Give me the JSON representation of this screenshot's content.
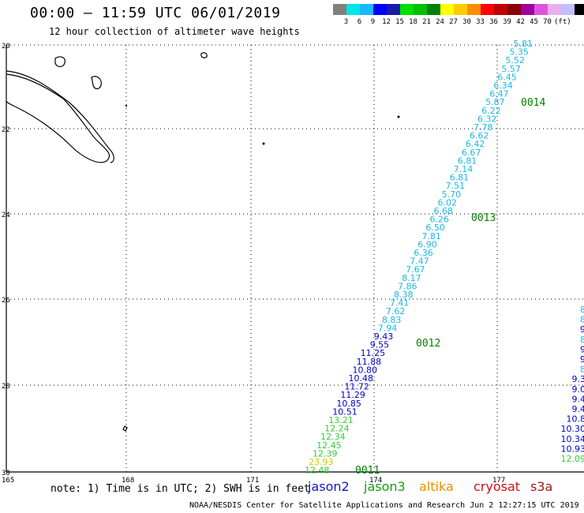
{
  "title": "00:00 – 11:59 UTC 06/01/2019",
  "subtitle": "12 hour collection of altimeter wave heights",
  "legend": {
    "colors": [
      "#808080",
      "#00e5e5",
      "#1ab8ff",
      "#0000ff",
      "#1a1aa8",
      "#00e000",
      "#00c000",
      "#008000",
      "#ffff00",
      "#ffcc00",
      "#ff8c00",
      "#ff0000",
      "#c00000",
      "#880000",
      "#a000a0",
      "#dd55dd",
      "#e8b0f0",
      "#c0c0ff",
      "#000000"
    ],
    "labels": [
      "3",
      "6",
      "9",
      "12",
      "15",
      "18",
      "21",
      "24",
      "27",
      "30",
      "33",
      "36",
      "39",
      "42",
      "45",
      "70",
      "(ft)"
    ]
  },
  "axes": {
    "lat_labels": [
      "20",
      "22",
      "24",
      "26",
      "28",
      "30"
    ],
    "lon_labels": [
      "165",
      "168",
      "171",
      "174",
      "177"
    ]
  },
  "tracks": [
    {
      "values": [
        "5.81",
        "5.35",
        "5.52",
        "5.57",
        "6.45",
        "6.34",
        "6.47",
        "5.87",
        "6.22",
        "6.32",
        "7.78",
        "6.62",
        "6.42",
        "6.67",
        "6.81",
        "7.14",
        "6.81",
        "7.51",
        "5.70",
        "6.02",
        "6.68",
        "6.26",
        "6.50",
        "7.81",
        "6.90",
        "6.36",
        "7.47",
        "7.67",
        "8.17",
        "7.86",
        "8.38",
        "7.41",
        "7.62",
        "8.83",
        "7.94",
        "9.43",
        "9.55",
        "11.25",
        "11.88",
        "10.80",
        "10.48",
        "11.72",
        "11.29",
        "10.85",
        "10.51",
        "13.21",
        "12.24",
        "12.34",
        "12.45",
        "12.39",
        "23.93",
        "12.48"
      ]
    },
    {
      "values": [
        "8",
        "8",
        "9",
        "8",
        "9",
        "9",
        "8",
        "9.3",
        "9.0",
        "9.4",
        "9.4",
        "10.8",
        "10.30",
        "10.34",
        "10.93",
        "12.09"
      ]
    }
  ],
  "time_labels": [
    "0014",
    "0013",
    "0012",
    "0011"
  ],
  "note": "note: 1) Time is in UTC; 2) SWH is in feet",
  "satellites": [
    {
      "name": "jason2",
      "color": "#1515c8"
    },
    {
      "name": "jason3",
      "color": "#11a011"
    },
    {
      "name": "altika",
      "color": "#f09000"
    },
    {
      "name": "cryosat",
      "color": "#d01010"
    },
    {
      "name": "s3a",
      "color": "#a01818"
    }
  ],
  "credit": "NOAA/NESDIS Center for Satellite Applications and Research    Jun  2 12:27:15 UTC 2019"
}
